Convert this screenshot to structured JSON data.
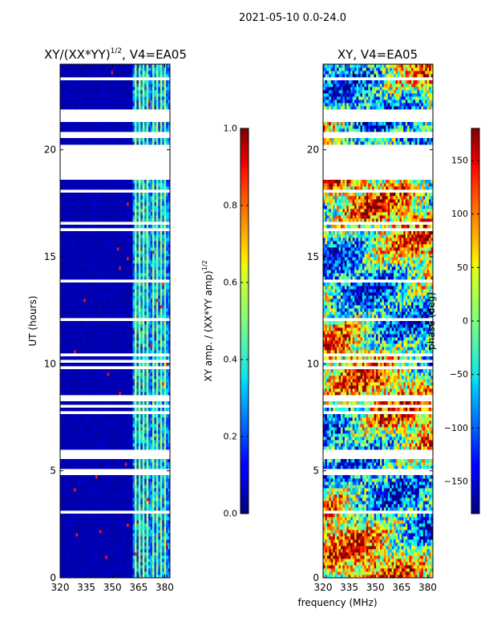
{
  "figure": {
    "suptitle": "2021-05-10 0.0-24.0",
    "shared_xlabel": "frequency (MHz)"
  },
  "chart_data": [
    {
      "type": "heatmap",
      "title": "XY/(XX*YY)^1/2, V4=EA05",
      "title_main": "XY/(XX*YY)",
      "title_exp": "1/2",
      "title_tail": ", V4=EA05",
      "xlabel": "frequency (MHz)",
      "ylabel": "UT (hours)",
      "xlim": [
        320,
        383
      ],
      "ylim": [
        0,
        24
      ],
      "xticks": [
        "320",
        "335",
        "350",
        "365",
        "380"
      ],
      "xtick_values": [
        320,
        335,
        350,
        365,
        380
      ],
      "yticks": [
        "0",
        "5",
        "10",
        "15",
        "20"
      ],
      "ytick_values": [
        0,
        5,
        10,
        15,
        20
      ],
      "colorbar": {
        "label": "XY amp. / (XX*YY amp)^1/2",
        "label_main": "XY amp. / (XX*YY amp)",
        "label_exp": "1/2",
        "range": [
          0.0,
          1.0
        ],
        "ticks": [
          "0.0",
          "0.2",
          "0.4",
          "0.6",
          "0.8",
          "1.0"
        ],
        "tick_values": [
          0.0,
          0.2,
          0.4,
          0.6,
          0.8,
          1.0
        ]
      },
      "data_gaps_hours": [
        [
          18.6,
          20.2
        ],
        [
          21.3,
          21.8
        ],
        [
          20.6,
          20.9
        ],
        [
          5.6,
          6.0
        ],
        [
          4.85,
          5.0
        ],
        [
          8.3,
          8.5
        ]
      ],
      "bright_channels_mhz": [
        363.5,
        365.5,
        368,
        370,
        373.5,
        375.5,
        378,
        380
      ]
    },
    {
      "type": "heatmap",
      "title": "XY, V4=EA05",
      "xlabel": "frequency (MHz)",
      "ylabel": "",
      "xlim": [
        320,
        383
      ],
      "ylim": [
        0,
        24
      ],
      "xticks": [
        "320",
        "335",
        "350",
        "365",
        "380"
      ],
      "xtick_values": [
        320,
        335,
        350,
        365,
        380
      ],
      "yticks": [
        "0",
        "5",
        "10",
        "15",
        "20"
      ],
      "ytick_values": [
        0,
        5,
        10,
        15,
        20
      ],
      "colorbar": {
        "label": "phase (deg)",
        "range": [
          -180,
          180
        ],
        "ticks": [
          "−150",
          "−100",
          "−50",
          "0",
          "50",
          "100",
          "150"
        ],
        "tick_values": [
          -150,
          -100,
          -50,
          0,
          50,
          100,
          150
        ]
      },
      "data_gaps_hours": [
        [
          18.6,
          20.2
        ],
        [
          21.3,
          21.8
        ],
        [
          20.6,
          20.9
        ],
        [
          4.85,
          5.0
        ],
        [
          8.3,
          8.5
        ]
      ]
    }
  ]
}
